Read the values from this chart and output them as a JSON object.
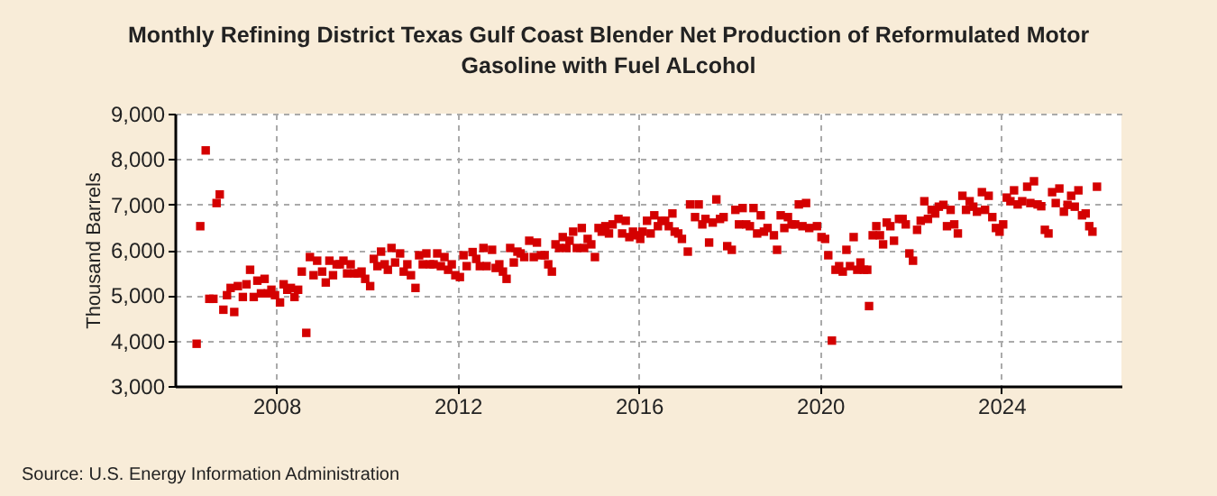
{
  "chart_data": {
    "type": "scatter",
    "title": "Monthly Refining District Texas Gulf Coast Blender Net Production of Reformulated Motor Gasoline with Fuel ALcohol",
    "ylabel": "Thousand Barrels",
    "annotations": [
      "Source: U.S. Energy Information Administration"
    ],
    "xlim": [
      2005.76,
      2026.65
    ],
    "xticks": [
      2008,
      2012,
      2016,
      2020,
      2024
    ],
    "ylim": [
      3000,
      9000
    ],
    "yticks": [
      {
        "value": 3000,
        "label": "3,000"
      },
      {
        "value": 4000,
        "label": "4,000"
      },
      {
        "value": 5000,
        "label": "5,000"
      },
      {
        "value": 6000,
        "label": "6,000"
      },
      {
        "value": 7000,
        "label": "7,000"
      },
      {
        "value": 8000,
        "label": "8,000"
      },
      {
        "value": 9000,
        "label": "9,000"
      }
    ],
    "grid": true,
    "marker": "square",
    "series": [
      {
        "color": "#d40000",
        "x": [
          2006.24,
          2006.32,
          2006.44,
          2006.52,
          2006.61,
          2006.68,
          2006.75,
          2006.83,
          2006.91,
          2006.99,
          2007.07,
          2007.15,
          2007.26,
          2007.34,
          2007.42,
          2007.5,
          2007.58,
          2007.66,
          2007.74,
          2007.81,
          2007.89,
          2007.97,
          2008.08,
          2008.16,
          2008.24,
          2008.32,
          2008.4,
          2008.48,
          2008.56,
          2008.66,
          2008.74,
          2008.82,
          2008.9,
          2009.01,
          2009.09,
          2009.17,
          2009.25,
          2009.33,
          2009.4,
          2009.48,
          2009.56,
          2009.64,
          2009.72,
          2009.8,
          2009.88,
          2009.96,
          2010.07,
          2010.15,
          2010.23,
          2010.31,
          2010.39,
          2010.46,
          2010.54,
          2010.62,
          2010.73,
          2010.81,
          2010.89,
          2010.97,
          2011.07,
          2011.15,
          2011.23,
          2011.31,
          2011.39,
          2011.47,
          2011.55,
          2011.63,
          2011.71,
          2011.79,
          2011.87,
          2011.95,
          2012.05,
          2012.13,
          2012.2,
          2012.33,
          2012.41,
          2012.49,
          2012.57,
          2012.64,
          2012.76,
          2012.84,
          2012.92,
          2013.0,
          2013.08,
          2013.16,
          2013.24,
          2013.32,
          2013.39,
          2013.47,
          2013.58,
          2013.68,
          2013.75,
          2013.84,
          2013.92,
          2014.0,
          2014.08,
          2014.16,
          2014.24,
          2014.32,
          2014.4,
          2014.47,
          2014.55,
          2014.63,
          2014.74,
          2014.79,
          2014.87,
          2014.95,
          2015.03,
          2015.11,
          2015.18,
          2015.26,
          2015.34,
          2015.42,
          2015.55,
          2015.63,
          2015.71,
          2015.79,
          2015.87,
          2015.95,
          2016.03,
          2016.08,
          2016.18,
          2016.26,
          2016.34,
          2016.42,
          2016.5,
          2016.58,
          2016.66,
          2016.74,
          2016.79,
          2016.87,
          2016.95,
          2017.08,
          2017.13,
          2017.24,
          2017.32,
          2017.4,
          2017.47,
          2017.55,
          2017.63,
          2017.71,
          2017.79,
          2017.87,
          2017.95,
          2018.05,
          2018.13,
          2018.21,
          2018.29,
          2018.37,
          2018.45,
          2018.53,
          2018.61,
          2018.69,
          2018.76,
          2018.84,
          2018.98,
          2019.05,
          2019.13,
          2019.21,
          2019.29,
          2019.37,
          2019.45,
          2019.53,
          2019.61,
          2019.69,
          2019.76,
          2019.93,
          2020.03,
          2020.11,
          2020.18,
          2020.26,
          2020.34,
          2020.42,
          2020.5,
          2020.58,
          2020.66,
          2020.74,
          2020.82,
          2020.89,
          2020.97,
          2021.04,
          2021.08,
          2021.16,
          2021.24,
          2021.32,
          2021.39,
          2021.47,
          2021.55,
          2021.63,
          2021.74,
          2021.82,
          2021.89,
          2021.97,
          2022.05,
          2022.14,
          2022.22,
          2022.3,
          2022.38,
          2022.46,
          2022.54,
          2022.62,
          2022.72,
          2022.8,
          2022.88,
          2022.96,
          2023.04,
          2023.14,
          2023.22,
          2023.3,
          2023.38,
          2023.46,
          2023.57,
          2023.64,
          2023.72,
          2023.8,
          2023.88,
          2023.96,
          2024.04,
          2024.12,
          2024.2,
          2024.28,
          2024.36,
          2024.46,
          2024.57,
          2024.64,
          2024.72,
          2024.8,
          2024.88,
          2024.96,
          2025.04,
          2025.12,
          2025.2,
          2025.28,
          2025.38,
          2025.46,
          2025.54,
          2025.62,
          2025.7,
          2025.78,
          2025.86,
          2025.94,
          2026.01,
          2026.11
        ],
        "values": [
          3930,
          6520,
          8190,
          4920,
          4920,
          7030,
          7220,
          4680,
          5000,
          5160,
          4630,
          5200,
          4960,
          5240,
          5560,
          4960,
          5320,
          5040,
          5360,
          5040,
          5120,
          5000,
          4840,
          5240,
          5120,
          5160,
          4960,
          5120,
          5520,
          4170,
          5840,
          5440,
          5760,
          5520,
          5280,
          5760,
          5440,
          5680,
          5680,
          5760,
          5480,
          5680,
          5480,
          5480,
          5520,
          5360,
          5200,
          5800,
          5640,
          5960,
          5680,
          5560,
          6040,
          5720,
          5920,
          5520,
          5680,
          5440,
          5160,
          5880,
          5680,
          5920,
          5680,
          5680,
          5920,
          5640,
          5840,
          5560,
          5680,
          5440,
          5400,
          5880,
          5640,
          5950,
          5800,
          5640,
          6040,
          5640,
          6000,
          5600,
          5680,
          5520,
          5360,
          6040,
          5720,
          5960,
          5920,
          5840,
          6200,
          5840,
          6160,
          5880,
          5880,
          5680,
          5520,
          6120,
          6040,
          6280,
          6040,
          6200,
          6400,
          6040,
          6480,
          6040,
          6240,
          6120,
          5840,
          6480,
          6400,
          6520,
          6360,
          6560,
          6680,
          6360,
          6640,
          6280,
          6400,
          6320,
          6240,
          6400,
          6640,
          6360,
          6760,
          6520,
          6640,
          6640,
          6520,
          6800,
          6400,
          6360,
          6240,
          5960,
          7000,
          6720,
          7000,
          6560,
          6680,
          6160,
          6600,
          7110,
          6680,
          6720,
          6080,
          6000,
          6880,
          6560,
          6920,
          6560,
          6520,
          6920,
          6360,
          6760,
          6400,
          6480,
          6320,
          6000,
          6760,
          6480,
          6720,
          6560,
          6560,
          7000,
          6520,
          7030,
          6480,
          6520,
          6280,
          6240,
          5880,
          4000,
          5560,
          5640,
          5520,
          6000,
          5640,
          6280,
          5560,
          5720,
          5560,
          5560,
          4760,
          6320,
          6520,
          6320,
          6120,
          6600,
          6520,
          6200,
          6680,
          6680,
          6560,
          5920,
          5760,
          6440,
          6640,
          7070,
          6680,
          6880,
          6800,
          6950,
          6990,
          6520,
          6880,
          6560,
          6360,
          7190,
          6880,
          7070,
          6950,
          6840,
          7270,
          6880,
          7190,
          6720,
          6480,
          6400,
          6560,
          7150,
          7070,
          7310,
          7000,
          7070,
          7390,
          7030,
          7510,
          7000,
          6960,
          6440,
          6360,
          7270,
          7030,
          7350,
          6840,
          6990,
          7190,
          6950,
          7310,
          6760,
          6800,
          6520,
          6400,
          7390
        ]
      }
    ]
  }
}
